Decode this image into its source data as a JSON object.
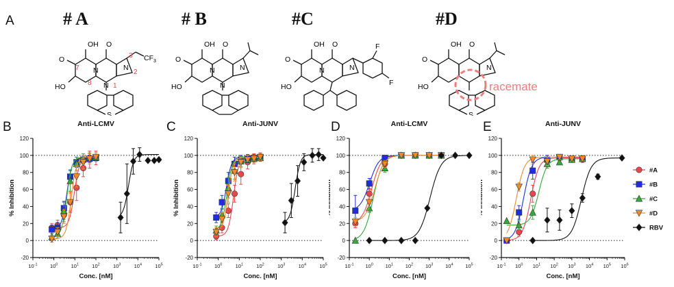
{
  "panel_a": {
    "label": "A",
    "compounds": [
      "# A",
      "# B",
      "#C",
      "#D"
    ],
    "atom_labels": {
      "oh": "OH",
      "o": "O",
      "ho": "HO",
      "n": "N",
      "s": "S",
      "f": "F",
      "cf3": "CF",
      "cf3_sub": "3",
      "positions": [
        "7",
        "8",
        "1",
        "2",
        "3"
      ],
      "racemate": "racemate"
    }
  },
  "chart_data": [
    {
      "panel": "B",
      "type": "scatter",
      "title": "Anti-LCMV",
      "xlabel": "Conc. [nM]",
      "ylabel": "% Inhibition",
      "xscale": "log",
      "xlim": [
        0.1,
        100000
      ],
      "ylim": [
        -20,
        120
      ],
      "yticks": [
        -20,
        0,
        20,
        40,
        60,
        80,
        100,
        120
      ],
      "series": [
        {
          "name": "#A",
          "color": "#e8474d",
          "marker": "circle",
          "x": [
            0.8,
            1.5,
            3,
            6,
            12,
            25,
            50,
            100
          ],
          "y": [
            15,
            18,
            30,
            45,
            62,
            85,
            95,
            97
          ],
          "err": [
            5,
            6,
            8,
            12,
            15,
            10,
            10,
            8
          ]
        },
        {
          "name": "#B",
          "color": "#1e2fd6",
          "marker": "square",
          "x": [
            0.8,
            1.5,
            3,
            6,
            12,
            25,
            50,
            100
          ],
          "y": [
            13,
            15,
            38,
            75,
            92,
            95,
            96,
            97
          ],
          "err": [
            5,
            6,
            8,
            8,
            6,
            5,
            4,
            4
          ]
        },
        {
          "name": "#C",
          "color": "#35a83a",
          "marker": "triangle-up",
          "x": [
            0.8,
            1.5,
            3,
            6,
            12,
            25,
            50,
            100
          ],
          "y": [
            4,
            8,
            35,
            70,
            90,
            96,
            98,
            98
          ],
          "err": [
            4,
            5,
            10,
            12,
            8,
            6,
            5,
            5
          ]
        },
        {
          "name": "#D",
          "color": "#f08a2c",
          "marker": "triangle-down",
          "x": [
            0.8,
            1.5,
            3,
            6,
            12,
            25,
            50,
            100
          ],
          "y": [
            2,
            10,
            28,
            45,
            75,
            92,
            96,
            98
          ],
          "err": [
            4,
            5,
            8,
            10,
            12,
            8,
            6,
            5
          ]
        },
        {
          "name": "RBV",
          "color": "#111111",
          "marker": "diamond",
          "x": [
            1500,
            3000,
            6000,
            12000,
            30000,
            60000,
            100000
          ],
          "y": [
            27,
            55,
            93,
            101,
            94,
            94,
            95
          ],
          "err": [
            18,
            35,
            15,
            8,
            0,
            0,
            0
          ]
        }
      ]
    },
    {
      "panel": "C",
      "type": "scatter",
      "title": "Anti-JUNV",
      "xlabel": "Conc. [nM]",
      "ylabel": "% Inhibition",
      "xscale": "log",
      "xlim": [
        0.1,
        100000
      ],
      "ylim": [
        -20,
        120
      ],
      "yticks": [
        -20,
        0,
        20,
        40,
        60,
        80,
        100,
        120
      ],
      "series": [
        {
          "name": "#A",
          "color": "#e8474d",
          "marker": "circle",
          "x": [
            0.8,
            1.5,
            3,
            6,
            12,
            25,
            50,
            100
          ],
          "y": [
            5,
            15,
            35,
            55,
            78,
            92,
            96,
            98
          ],
          "err": [
            4,
            6,
            8,
            10,
            12,
            8,
            6,
            5
          ]
        },
        {
          "name": "#B",
          "color": "#1e2fd6",
          "marker": "square",
          "x": [
            0.8,
            1.5,
            3,
            6,
            12,
            25,
            50,
            100
          ],
          "y": [
            27,
            45,
            70,
            90,
            95,
            96,
            97,
            98
          ],
          "err": [
            6,
            8,
            10,
            8,
            5,
            5,
            4,
            4
          ]
        },
        {
          "name": "#C",
          "color": "#35a83a",
          "marker": "triangle-up",
          "x": [
            0.8,
            1.5,
            3,
            6,
            12,
            25,
            50,
            100
          ],
          "y": [
            12,
            30,
            62,
            82,
            93,
            95,
            96,
            97
          ],
          "err": [
            5,
            8,
            12,
            10,
            6,
            5,
            4,
            4
          ]
        },
        {
          "name": "#D",
          "color": "#f08a2c",
          "marker": "triangle-down",
          "x": [
            0.8,
            1.5,
            3,
            6,
            12,
            25,
            50,
            100
          ],
          "y": [
            10,
            25,
            55,
            80,
            92,
            95,
            96,
            98
          ],
          "err": [
            5,
            8,
            10,
            10,
            6,
            5,
            4,
            4
          ]
        },
        {
          "name": "RBV",
          "color": "#111111",
          "marker": "diamond",
          "x": [
            1500,
            3000,
            6000,
            12000,
            30000,
            60000,
            100000
          ],
          "y": [
            21,
            47,
            70,
            92,
            100,
            101,
            97
          ],
          "err": [
            12,
            20,
            18,
            10,
            8,
            7,
            0
          ]
        }
      ]
    },
    {
      "panel": "D",
      "type": "scatter",
      "title": "Anti-LCMV",
      "xlabel": "Conc. [nM]",
      "ylabel": "% Inhibition",
      "xscale": "log",
      "xlim": [
        0.1,
        100000
      ],
      "ylim": [
        -20,
        120
      ],
      "yticks": [
        -20,
        0,
        20,
        40,
        60,
        80,
        100,
        120
      ],
      "series": [
        {
          "name": "#A",
          "color": "#e8474d",
          "marker": "circle",
          "x": [
            0.2,
            1,
            6,
            40,
            200,
            1000,
            4000
          ],
          "y": [
            20,
            55,
            90,
            100,
            100,
            100,
            100
          ],
          "err": [
            5,
            5,
            4,
            0,
            0,
            0,
            0
          ]
        },
        {
          "name": "#B",
          "color": "#1e2fd6",
          "marker": "square",
          "x": [
            0.2,
            1,
            6,
            40,
            200,
            1000,
            4000
          ],
          "y": [
            35,
            67,
            97,
            100,
            100,
            100,
            100
          ],
          "err": [
            18,
            6,
            3,
            0,
            0,
            0,
            0
          ]
        },
        {
          "name": "#C",
          "color": "#35a83a",
          "marker": "triangle-up",
          "x": [
            0.2,
            1,
            6,
            40,
            200,
            1000,
            4000
          ],
          "y": [
            0,
            38,
            85,
            100,
            100,
            100,
            100
          ],
          "err": [
            0,
            5,
            5,
            0,
            0,
            0,
            0
          ]
        },
        {
          "name": "#D",
          "color": "#f08a2c",
          "marker": "triangle-down",
          "x": [
            0.2,
            1,
            6,
            40,
            200,
            1000,
            4000
          ],
          "y": [
            22,
            45,
            90,
            100,
            100,
            100,
            100
          ],
          "err": [
            5,
            5,
            4,
            0,
            0,
            0,
            0
          ]
        },
        {
          "name": "RBV",
          "color": "#111111",
          "marker": "diamond",
          "x": [
            1,
            6,
            40,
            200,
            800,
            4000,
            20000,
            100000
          ],
          "y": [
            0,
            0,
            0,
            0,
            38,
            100,
            100,
            100
          ],
          "err": [
            0,
            0,
            0,
            0,
            0,
            0,
            0,
            0
          ]
        }
      ]
    },
    {
      "panel": "E",
      "type": "scatter",
      "title": "Anti-JUNV",
      "xlabel": "Conc. [nM]",
      "ylabel": "% Inhibition",
      "xscale": "log",
      "xlim": [
        0.1,
        1000000
      ],
      "ylim": [
        -20,
        120
      ],
      "yticks": [
        -20,
        0,
        20,
        40,
        60,
        80,
        100,
        120
      ],
      "series": [
        {
          "name": "#A",
          "color": "#e8474d",
          "marker": "circle",
          "x": [
            0.2,
            1,
            6,
            40,
            200,
            1000,
            4000
          ],
          "y": [
            0,
            10,
            55,
            95,
            97,
            95,
            95
          ],
          "err": [
            0,
            5,
            10,
            5,
            3,
            3,
            3
          ]
        },
        {
          "name": "#B",
          "color": "#1e2fd6",
          "marker": "square",
          "x": [
            0.2,
            1,
            6,
            40,
            200,
            1000,
            4000
          ],
          "y": [
            0,
            33,
            82,
            95,
            98,
            96,
            96
          ],
          "err": [
            0,
            8,
            10,
            5,
            3,
            3,
            3
          ]
        },
        {
          "name": "#C",
          "color": "#35a83a",
          "marker": "triangle-up",
          "x": [
            0.2,
            1,
            6,
            40,
            200,
            1000,
            4000
          ],
          "y": [
            23,
            18,
            33,
            90,
            92,
            95,
            96
          ],
          "err": [
            0,
            5,
            8,
            5,
            3,
            3,
            3
          ]
        },
        {
          "name": "#D",
          "color": "#f08a2c",
          "marker": "triangle-down",
          "x": [
            0.2,
            1,
            6,
            40,
            200,
            1000,
            4000
          ],
          "y": [
            0,
            63,
            95,
            93,
            98,
            96,
            96
          ],
          "err": [
            0,
            5,
            5,
            5,
            3,
            3,
            3
          ]
        },
        {
          "name": "RBV",
          "color": "#111111",
          "marker": "diamond",
          "x": [
            6,
            40,
            200,
            1000,
            4000,
            30000,
            700000
          ],
          "y": [
            0,
            24,
            24,
            35,
            50,
            75,
            97
          ],
          "err": [
            0,
            14,
            12,
            8,
            5,
            3,
            0
          ]
        }
      ]
    }
  ],
  "legend": {
    "entries": [
      {
        "name": "#A",
        "color": "#e8474d",
        "marker": "circle"
      },
      {
        "name": "#B",
        "color": "#1e2fd6",
        "marker": "square"
      },
      {
        "name": "#C",
        "color": "#35a83a",
        "marker": "triangle-up"
      },
      {
        "name": "#D",
        "color": "#f08a2c",
        "marker": "triangle-down"
      },
      {
        "name": "RBV",
        "color": "#111111",
        "marker": "diamond"
      }
    ]
  }
}
